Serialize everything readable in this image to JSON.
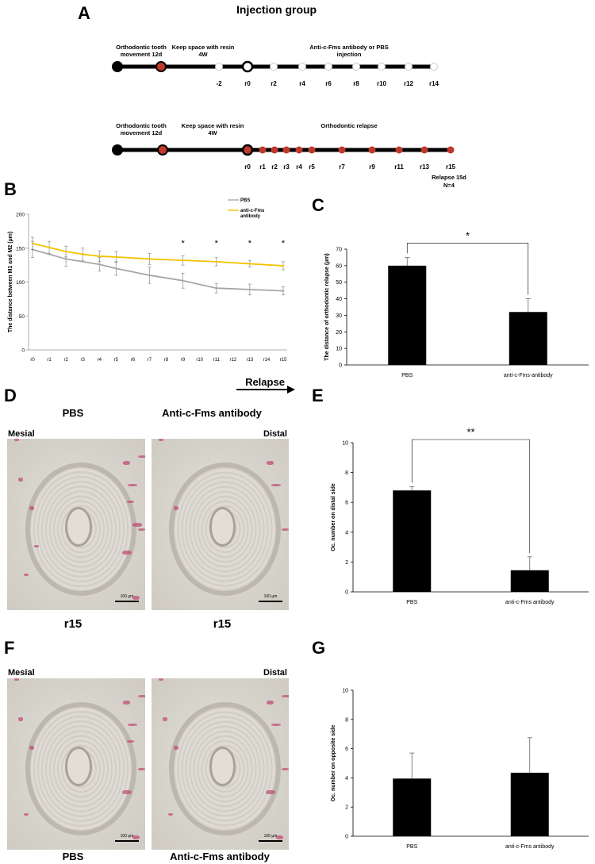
{
  "panels": {
    "A": {
      "letter": "A",
      "title": "Injection group",
      "top": {
        "label_otm": "Orthodontic tooth movement 12d",
        "label_keep": "Keep space with resin 4W",
        "label_injection": "Anti-c-Fms antibody or PBS injection",
        "ticks": [
          "-2",
          "r0",
          "r2",
          "r4",
          "r6",
          "r8",
          "r10",
          "r12",
          "r14"
        ]
      },
      "bottom": {
        "label_otm": "Orthodontic tooth movement 12d",
        "label_keep": "Keep space with resin 4W",
        "label_relapse": "Orthodontic relapse",
        "ticks": [
          "r0",
          "r1",
          "r2",
          "r3",
          "r4",
          "r5",
          "r7",
          "r9",
          "r11",
          "r13",
          "r15"
        ],
        "note_line1": "Relapse 15d",
        "note_line2": "N=4"
      }
    },
    "B": {
      "letter": "B"
    },
    "C": {
      "letter": "C"
    },
    "D": {
      "letter": "D",
      "left_title": "PBS",
      "right_title": "Anti-c-Fms antibody",
      "mesial": "Mesial",
      "distal": "Distal",
      "scale_left": "100 µm",
      "scale_right": "100 µm",
      "caption_left": "r15",
      "caption_right": "r15",
      "relapse_arrow": "Relapse"
    },
    "E": {
      "letter": "E"
    },
    "F": {
      "letter": "F",
      "mesial": "Mesial",
      "distal": "Distal",
      "scale_left": "100 µm",
      "scale_right": "100 µm",
      "caption_left": "PBS",
      "caption_right": "Anti-c-Fms antibody"
    },
    "G": {
      "letter": "G"
    }
  },
  "colors": {
    "pbs_line": "#a6a6a6",
    "anti_line": "#f2c200",
    "bar": "#000000",
    "timeline_dot_red": "#c0392b"
  },
  "chart_data": [
    {
      "id": "B",
      "type": "line",
      "ylabel": "The distance between M1 and M2 (µm)",
      "xlabel": "",
      "x": [
        "r0",
        "r1",
        "r2",
        "r3",
        "r4",
        "r5",
        "r6",
        "r7",
        "r8",
        "r9",
        "r10",
        "r11",
        "r12",
        "r13",
        "r14",
        "r15"
      ],
      "ylim": [
        0,
        200
      ],
      "yticks": [
        0,
        50,
        100,
        150,
        200
      ],
      "legend_position": "top-right",
      "series": [
        {
          "name": "PBS",
          "color": "#a6a6a6",
          "values": [
            148,
            null,
            134,
            null,
            126,
            120,
            null,
            110,
            null,
            102,
            null,
            91,
            null,
            89,
            null,
            87
          ],
          "errors": [
            12,
            null,
            11,
            null,
            10,
            10,
            null,
            12,
            null,
            11,
            null,
            7,
            null,
            8,
            null,
            6
          ]
        },
        {
          "name": "anti-c-Fms antibody",
          "color": "#f2c200",
          "values": [
            157,
            151,
            145,
            141,
            138,
            137,
            null,
            134,
            null,
            132,
            null,
            130,
            null,
            127,
            null,
            124
          ],
          "errors": [
            9,
            9,
            8,
            9,
            8,
            8,
            null,
            8,
            null,
            7,
            null,
            6,
            null,
            5,
            null,
            6
          ]
        }
      ],
      "significance": [
        {
          "x": "r9",
          "label": "*"
        },
        {
          "x": "r11",
          "label": "*"
        },
        {
          "x": "r13",
          "label": "*"
        },
        {
          "x": "r15",
          "label": "*"
        }
      ]
    },
    {
      "id": "C",
      "type": "bar",
      "ylabel": "The distance of orthodontic relapse (µm)",
      "categories": [
        "PBS",
        "anti-c-Fms-antibody"
      ],
      "values": [
        60,
        32
      ],
      "errors": [
        5,
        8
      ],
      "ylim": [
        0,
        70
      ],
      "yticks": [
        0,
        10,
        20,
        30,
        40,
        50,
        60,
        70
      ],
      "significance": "*"
    },
    {
      "id": "E",
      "type": "bar",
      "ylabel": "Oc. number on distal side",
      "categories": [
        "PBS",
        "anti-c-Fms antibody"
      ],
      "values": [
        6.8,
        1.45
      ],
      "errors": [
        0.25,
        0.9
      ],
      "ylim": [
        0,
        10
      ],
      "yticks": [
        0,
        2,
        4,
        6,
        8,
        10
      ],
      "significance": "**"
    },
    {
      "id": "G",
      "type": "bar",
      "ylabel": "Oc. number on opposite side",
      "categories": [
        "PBS",
        "anti-c-Fms antibody"
      ],
      "values": [
        3.95,
        4.35
      ],
      "errors": [
        1.75,
        2.4
      ],
      "ylim": [
        0,
        10
      ],
      "yticks": [
        0,
        2,
        4,
        6,
        8,
        10
      ]
    }
  ]
}
